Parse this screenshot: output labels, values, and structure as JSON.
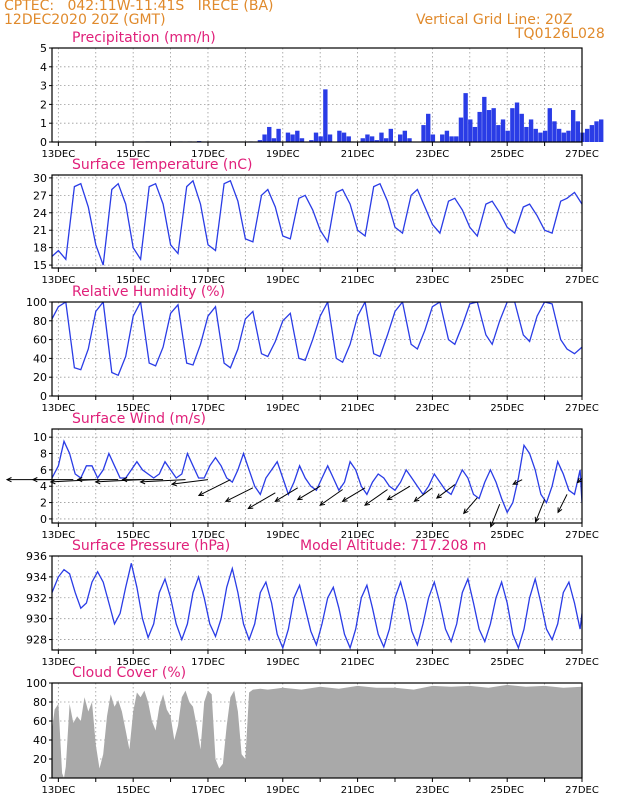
{
  "header": {
    "station": "CPTEC:   042:11W-11:41S   IRECE (BA)",
    "run": "12DEC2020 20Z (GMT)",
    "grid_note": "Vertical Grid Line: 20Z",
    "code": "TQ0126L028"
  },
  "colors": {
    "line": "#2a3ce6",
    "cloud": "#a9a9a9",
    "title": "#e0207a",
    "header": "#e08a2c"
  },
  "x_labels": [
    "13DEC",
    "15DEC",
    "17DEC",
    "19DEC",
    "21DEC",
    "23DEC",
    "25DEC",
    "27DEC"
  ],
  "chart_data": [
    {
      "id": "precip",
      "type": "bar",
      "title": "Precipitation (mm/h)",
      "unit": "mm/h",
      "ylim": [
        0,
        5
      ],
      "yticks": [
        0,
        1,
        2,
        3,
        4,
        5
      ],
      "x_start_day": 12.83,
      "x_step_hours": 3,
      "values": [
        0,
        0,
        0,
        0,
        0,
        0,
        0,
        0,
        0,
        0,
        0,
        0,
        0,
        0,
        0,
        0,
        0,
        0,
        0.02,
        0,
        0.03,
        0,
        0,
        0.02,
        0,
        0,
        0,
        0.03,
        0,
        0.03,
        0,
        0.05,
        0,
        0.02,
        0,
        0,
        0,
        0,
        0,
        0,
        0.02,
        0,
        0.03,
        0,
        0.1,
        0.4,
        0.8,
        0.2,
        0.7,
        0,
        0.5,
        0.4,
        0.6,
        0.2,
        0,
        0.1,
        0.5,
        0.3,
        2.8,
        0.4,
        0,
        0.6,
        0.5,
        0.3,
        0,
        0,
        0.2,
        0.4,
        0.3,
        0.1,
        0.5,
        0.2,
        0.7,
        0,
        0.4,
        0.6,
        0.2,
        0,
        0,
        0.9,
        1.5,
        0.4,
        0,
        0.4,
        0.6,
        0.3,
        0.3,
        1.3,
        2.6,
        1.2,
        0.8,
        1.6,
        2.4,
        1.7,
        1.8,
        0.9,
        1.2,
        0.6,
        1.8,
        2.1,
        1.5,
        0.8,
        1.2,
        0.7,
        0.5,
        0.6,
        1.8,
        1.1,
        0.7,
        0.5,
        0.6,
        1.7,
        1.1,
        0.5,
        0.7,
        0.9,
        1.1,
        1.2
      ]
    },
    {
      "id": "temp",
      "type": "line",
      "title": "Surface Temperature (nC)",
      "unit": "°C",
      "ylim": [
        14.5,
        30.5
      ],
      "yticks": [
        15,
        18,
        21,
        24,
        27,
        30
      ],
      "x": [
        12.83,
        13.0,
        13.2,
        13.43,
        13.6,
        13.8,
        14.0,
        14.2,
        14.43,
        14.6,
        14.8,
        15.0,
        15.2,
        15.43,
        15.6,
        15.8,
        16.0,
        16.2,
        16.43,
        16.6,
        16.8,
        17.0,
        17.2,
        17.43,
        17.6,
        17.8,
        18.0,
        18.2,
        18.43,
        18.6,
        18.8,
        19.0,
        19.2,
        19.43,
        19.6,
        19.8,
        20.0,
        20.2,
        20.43,
        20.6,
        20.8,
        21.0,
        21.2,
        21.43,
        21.6,
        21.8,
        22.0,
        22.2,
        22.43,
        22.6,
        22.8,
        23.0,
        23.2,
        23.43,
        23.6,
        23.8,
        24.0,
        24.2,
        24.43,
        24.6,
        24.8,
        25.0,
        25.2,
        25.43,
        25.6,
        25.8,
        26.0,
        26.2,
        26.43,
        26.6,
        26.8,
        27.0
      ],
      "values": [
        16.5,
        17.5,
        16.0,
        28.5,
        29.0,
        25.0,
        18.5,
        15.0,
        28.0,
        29.0,
        25.5,
        18.0,
        16.0,
        28.5,
        29.0,
        25.5,
        18.5,
        17.0,
        28.5,
        29.5,
        25.5,
        18.5,
        17.5,
        29.0,
        29.5,
        26.0,
        19.5,
        19.0,
        27.0,
        28.0,
        25.0,
        20.0,
        19.5,
        26.5,
        27.0,
        24.5,
        21.0,
        19.0,
        27.5,
        28.0,
        25.5,
        21.0,
        20.0,
        28.5,
        29.0,
        26.0,
        21.5,
        20.5,
        27.0,
        28.0,
        25.0,
        22.0,
        20.5,
        26.0,
        26.5,
        24.5,
        21.5,
        20.0,
        25.5,
        26.0,
        24.0,
        21.5,
        20.5,
        25.0,
        25.5,
        23.5,
        21.0,
        20.5,
        26.0,
        26.5,
        27.5,
        25.5
      ]
    },
    {
      "id": "rh",
      "type": "line",
      "title": "Relative Humidity (%)",
      "unit": "%",
      "ylim": [
        0,
        100
      ],
      "yticks": [
        0,
        20,
        40,
        60,
        80,
        100
      ],
      "x": [
        12.83,
        13.0,
        13.2,
        13.43,
        13.6,
        13.8,
        14.0,
        14.2,
        14.43,
        14.6,
        14.8,
        15.0,
        15.2,
        15.43,
        15.6,
        15.8,
        16.0,
        16.2,
        16.43,
        16.6,
        16.8,
        17.0,
        17.2,
        17.43,
        17.6,
        17.8,
        18.0,
        18.2,
        18.43,
        18.6,
        18.8,
        19.0,
        19.2,
        19.43,
        19.6,
        19.8,
        20.0,
        20.2,
        20.43,
        20.6,
        20.8,
        21.0,
        21.2,
        21.43,
        21.6,
        21.8,
        22.0,
        22.2,
        22.43,
        22.6,
        22.8,
        23.0,
        23.2,
        23.43,
        23.6,
        23.8,
        24.0,
        24.2,
        24.43,
        24.6,
        24.8,
        25.0,
        25.2,
        25.43,
        25.6,
        25.8,
        26.0,
        26.2,
        26.43,
        26.6,
        26.8,
        27.0
      ],
      "values": [
        82,
        95,
        100,
        30,
        28,
        50,
        90,
        100,
        25,
        22,
        42,
        85,
        100,
        35,
        32,
        52,
        88,
        97,
        35,
        33,
        55,
        85,
        95,
        35,
        30,
        50,
        82,
        90,
        45,
        42,
        58,
        80,
        88,
        40,
        38,
        60,
        85,
        100,
        40,
        36,
        55,
        85,
        100,
        45,
        42,
        65,
        90,
        100,
        55,
        50,
        70,
        95,
        100,
        60,
        55,
        75,
        98,
        100,
        65,
        55,
        80,
        100,
        100,
        65,
        58,
        85,
        100,
        98,
        60,
        50,
        45,
        52
      ]
    },
    {
      "id": "wind",
      "type": "line",
      "title": "Surface Wind (m/s)",
      "unit": "m/s",
      "ylim": [
        -0.5,
        11
      ],
      "yticks": [
        0,
        2,
        4,
        6,
        8,
        10
      ],
      "x": [
        12.83,
        13.0,
        13.15,
        13.3,
        13.45,
        13.6,
        13.75,
        13.9,
        14.05,
        14.2,
        14.35,
        14.5,
        14.65,
        14.8,
        14.95,
        15.1,
        15.25,
        15.4,
        15.55,
        15.7,
        15.85,
        16.0,
        16.15,
        16.3,
        16.45,
        16.6,
        16.75,
        16.9,
        17.05,
        17.2,
        17.35,
        17.5,
        17.65,
        17.8,
        17.95,
        18.1,
        18.25,
        18.4,
        18.55,
        18.7,
        18.85,
        19.0,
        19.15,
        19.3,
        19.45,
        19.6,
        19.75,
        19.9,
        20.05,
        20.2,
        20.35,
        20.5,
        20.65,
        20.8,
        20.95,
        21.1,
        21.25,
        21.4,
        21.55,
        21.7,
        21.85,
        22.0,
        22.15,
        22.3,
        22.45,
        22.6,
        22.75,
        22.9,
        23.05,
        23.2,
        23.35,
        23.5,
        23.65,
        23.8,
        23.95,
        24.1,
        24.25,
        24.4,
        24.55,
        24.7,
        24.85,
        25.0,
        25.15,
        25.3,
        25.45,
        25.6,
        25.75,
        25.9,
        26.05,
        26.2,
        26.35,
        26.5,
        26.65,
        26.8,
        26.95,
        27.0
      ],
      "values": [
        5,
        6.5,
        9.5,
        8,
        5.5,
        5,
        6.5,
        6.5,
        5,
        6,
        8,
        6.5,
        5,
        5,
        6,
        7,
        6,
        5.5,
        5,
        5.5,
        7,
        6,
        5,
        5.5,
        8,
        6.5,
        5,
        5,
        6.5,
        7.5,
        6.5,
        5,
        4.5,
        6,
        8,
        6,
        4,
        3,
        5,
        6,
        7,
        5,
        3,
        4.5,
        6.5,
        5,
        4,
        3.5,
        5,
        6.5,
        5,
        3.5,
        4.5,
        7,
        6,
        4,
        3,
        4.5,
        5.5,
        5,
        4,
        3.5,
        4.5,
        6,
        5,
        4,
        3,
        4,
        5.5,
        4.5,
        3.5,
        3,
        4.5,
        6,
        5,
        3,
        2.5,
        4.5,
        6,
        4.5,
        2.5,
        0.8,
        2,
        5,
        9,
        8,
        6,
        3,
        2,
        4,
        7,
        5.5,
        3.5,
        3,
        6,
        2
      ]
    },
    {
      "id": "wind_vectors",
      "type": "scatter",
      "title": "",
      "x": [
        12.83,
        13.4,
        14.0,
        14.6,
        15.2,
        15.8,
        16.4,
        17.0,
        17.6,
        18.2,
        18.8,
        19.4,
        20.0,
        20.6,
        21.2,
        21.8,
        22.4,
        23.0,
        23.6,
        24.2,
        24.8,
        25.4,
        26.0,
        26.6,
        27.0
      ],
      "values": [
        4.8,
        4.8,
        4.8,
        4.8,
        4.8,
        4.8,
        4.8,
        4.8,
        4.8,
        3.8,
        3.2,
        3.8,
        4.0,
        3.6,
        3.8,
        3.6,
        4.0,
        3.8,
        4.2,
        2.6,
        1.8,
        4.8,
        2.4,
        3.0,
        5.0
      ],
      "u": [
        -1,
        -0.9,
        -1,
        -0.9,
        -1,
        -0.9,
        -1,
        -0.8,
        -0.7,
        -0.6,
        -0.6,
        -0.5,
        -0.5,
        -0.5,
        -0.5,
        -0.5,
        -0.5,
        -0.4,
        -0.4,
        -0.3,
        -0.2,
        -0.2,
        -0.2,
        -0.2,
        -0.1
      ],
      "v": [
        0,
        0,
        -0.05,
        0,
        -0.05,
        0,
        -0.05,
        -0.1,
        -0.35,
        -0.3,
        -0.35,
        -0.3,
        -0.3,
        -0.35,
        -0.3,
        -0.35,
        -0.3,
        -0.3,
        -0.3,
        -0.35,
        -0.5,
        -0.1,
        -0.5,
        -0.4,
        -0.1
      ]
    },
    {
      "id": "pressure",
      "type": "line",
      "title": "Surface Pressure (hPa)",
      "title_extra": "Model Altitude: 717.208 m",
      "unit": "hPa",
      "ylim": [
        927,
        936
      ],
      "yticks": [
        928,
        930,
        932,
        934,
        936
      ],
      "x": [
        12.83,
        13.0,
        13.15,
        13.3,
        13.45,
        13.6,
        13.75,
        13.9,
        14.05,
        14.2,
        14.35,
        14.5,
        14.65,
        14.8,
        14.95,
        15.1,
        15.25,
        15.4,
        15.55,
        15.7,
        15.85,
        16.0,
        16.15,
        16.3,
        16.45,
        16.6,
        16.75,
        16.9,
        17.05,
        17.2,
        17.35,
        17.5,
        17.65,
        17.8,
        17.95,
        18.1,
        18.25,
        18.4,
        18.55,
        18.7,
        18.85,
        19.0,
        19.15,
        19.3,
        19.45,
        19.6,
        19.75,
        19.9,
        20.05,
        20.2,
        20.35,
        20.5,
        20.65,
        20.8,
        20.95,
        21.1,
        21.25,
        21.4,
        21.55,
        21.7,
        21.85,
        22.0,
        22.15,
        22.3,
        22.45,
        22.6,
        22.75,
        22.9,
        23.05,
        23.2,
        23.35,
        23.5,
        23.65,
        23.8,
        23.95,
        24.1,
        24.25,
        24.4,
        24.55,
        24.7,
        24.85,
        25.0,
        25.15,
        25.3,
        25.45,
        25.6,
        25.75,
        25.9,
        26.05,
        26.2,
        26.35,
        26.5,
        26.65,
        26.8,
        26.95,
        27.0
      ],
      "values": [
        932.5,
        934,
        934.7,
        934.3,
        932.5,
        931,
        931.5,
        933.5,
        934.5,
        933.5,
        931.5,
        929.5,
        930.5,
        933,
        935.3,
        933,
        930,
        928.2,
        929.5,
        932.5,
        933.8,
        932,
        929.5,
        928,
        929.5,
        932.5,
        934,
        932,
        929.5,
        928.3,
        930,
        933,
        934.8,
        932.5,
        929.5,
        928,
        929.5,
        932.5,
        933.5,
        931.5,
        928.5,
        927.2,
        929,
        932,
        933.2,
        931,
        928.8,
        927.5,
        929.5,
        932,
        933,
        931,
        928.5,
        927.2,
        929,
        932,
        933.2,
        931,
        928.5,
        927.3,
        929,
        932,
        933.5,
        931.5,
        928.8,
        927.5,
        929.5,
        932,
        933.5,
        931.5,
        929,
        927.8,
        929.5,
        932.5,
        933.8,
        931.5,
        929,
        927.8,
        929.5,
        932,
        933.5,
        931.5,
        928.5,
        927.2,
        929,
        932,
        933.8,
        931.5,
        929,
        928,
        929.5,
        932.5,
        933.5,
        931.5,
        929,
        930.5
      ]
    },
    {
      "id": "cloud",
      "type": "area",
      "title": "Cloud Cover (%)",
      "unit": "%",
      "ylim": [
        0,
        100
      ],
      "yticks": [
        0,
        20,
        40,
        60,
        80,
        100
      ],
      "x": [
        12.83,
        12.9,
        13.0,
        13.1,
        13.15,
        13.2,
        13.3,
        13.4,
        13.5,
        13.6,
        13.7,
        13.8,
        13.9,
        14.0,
        14.1,
        14.2,
        14.3,
        14.4,
        14.5,
        14.6,
        14.7,
        14.8,
        14.9,
        15.0,
        15.1,
        15.2,
        15.3,
        15.4,
        15.5,
        15.6,
        15.7,
        15.8,
        15.9,
        16.0,
        16.1,
        16.2,
        16.3,
        16.4,
        16.5,
        16.6,
        16.7,
        16.8,
        16.9,
        17.0,
        17.1,
        17.2,
        17.3,
        17.4,
        17.5,
        17.6,
        17.7,
        17.8,
        17.9,
        18.0,
        18.1,
        18.2,
        18.4,
        18.6,
        18.8,
        19.0,
        19.5,
        20.0,
        20.5,
        21.0,
        21.5,
        22.0,
        22.5,
        23.0,
        23.5,
        24.0,
        24.5,
        25.0,
        25.5,
        26.0,
        26.5,
        27.0
      ],
      "values": [
        50,
        72,
        78,
        5,
        0,
        12,
        78,
        58,
        65,
        60,
        85,
        70,
        80,
        35,
        10,
        25,
        65,
        88,
        75,
        82,
        70,
        50,
        30,
        70,
        90,
        85,
        92,
        80,
        60,
        50,
        75,
        88,
        72,
        65,
        40,
        55,
        85,
        92,
        80,
        75,
        55,
        30,
        80,
        92,
        88,
        20,
        10,
        15,
        55,
        85,
        92,
        70,
        25,
        20,
        90,
        93,
        94,
        93,
        94,
        95,
        93,
        96,
        94,
        97,
        95,
        95,
        93,
        97,
        96,
        97,
        95,
        98,
        96,
        97,
        95,
        96
      ]
    }
  ]
}
